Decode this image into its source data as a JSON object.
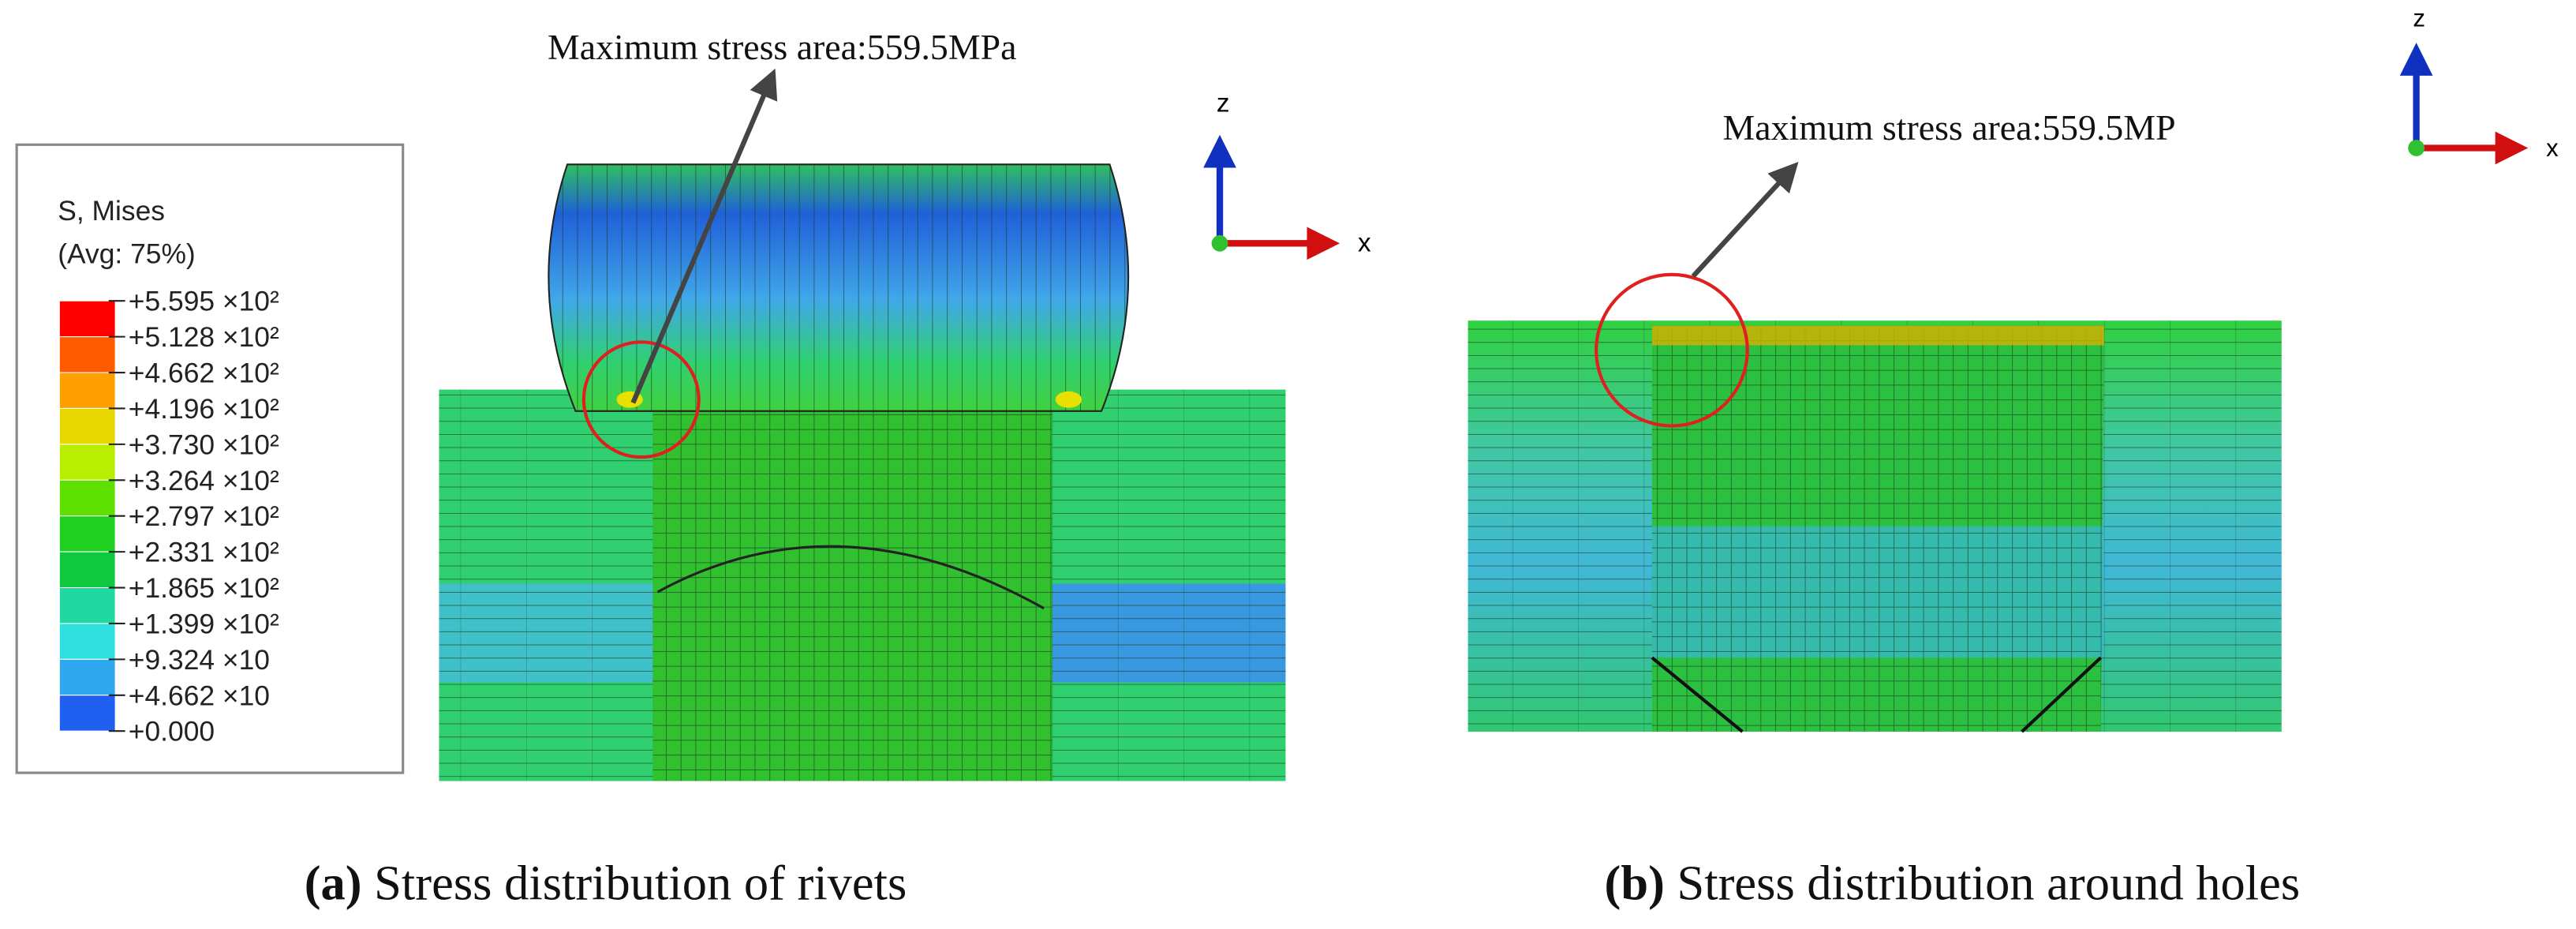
{
  "legend": {
    "title": "S, Mises",
    "subtitle": "(Avg: 75%)",
    "labels": [
      "+5.595 ×10²",
      "+5.128 ×10²",
      "+4.662 ×10²",
      "+4.196 ×10²",
      "+3.730 ×10²",
      "+3.264 ×10²",
      "+2.797 ×10²",
      "+2.331 ×10²",
      "+1.865 ×10²",
      "+1.399 ×10²",
      "+9.324 ×10",
      "+4.662 ×10",
      "+0.000"
    ],
    "colors": [
      "#ff0000",
      "#ff5a00",
      "#ffa000",
      "#e8d800",
      "#b8ee00",
      "#5ee000",
      "#20d020",
      "#10c840",
      "#20d8a0",
      "#30e0e0",
      "#30a8f0",
      "#2060f0"
    ]
  },
  "panel_a": {
    "annotation": "Maximum stress area:559.5MPa",
    "axis_z": "z",
    "axis_x": "x",
    "caption_label": "(a)",
    "caption": "Stress distribution of rivets"
  },
  "panel_b": {
    "annotation": "Maximum stress area:559.5MP",
    "axis_z": "z",
    "axis_x": "x",
    "caption_label": "(b)",
    "caption": "Stress distribution around holes"
  }
}
